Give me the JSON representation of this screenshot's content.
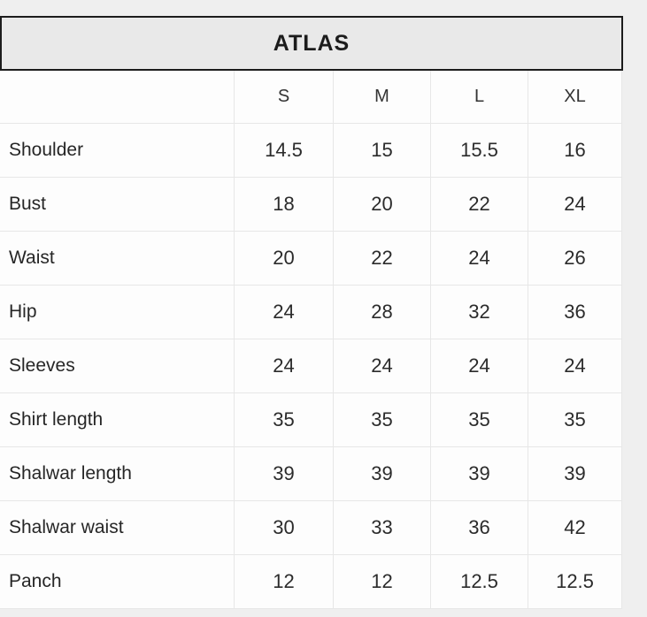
{
  "page": {
    "title": "ATLAS"
  },
  "chart_data": {
    "type": "table",
    "title": "ATLAS",
    "columns": [
      "S",
      "M",
      "L",
      "XL"
    ],
    "rows": [
      {
        "label": "Shoulder",
        "values": [
          "14.5",
          "15",
          "15.5",
          "16"
        ]
      },
      {
        "label": "Bust",
        "values": [
          "18",
          "20",
          "22",
          "24"
        ]
      },
      {
        "label": "Waist",
        "values": [
          "20",
          "22",
          "24",
          "26"
        ]
      },
      {
        "label": "Hip",
        "values": [
          "24",
          "28",
          "32",
          "36"
        ]
      },
      {
        "label": "Sleeves",
        "values": [
          "24",
          "24",
          "24",
          "24"
        ]
      },
      {
        "label": "Shirt length",
        "values": [
          "35",
          "35",
          "35",
          "35"
        ]
      },
      {
        "label": "Shalwar length",
        "values": [
          "39",
          "39",
          "39",
          "39"
        ]
      },
      {
        "label": "Shalwar waist",
        "values": [
          "30",
          "33",
          "36",
          "42"
        ]
      },
      {
        "label": "Panch",
        "values": [
          "12",
          "12",
          "12.5",
          "12.5"
        ]
      }
    ]
  },
  "colors": {
    "page_background": "#efefef",
    "cell_background": "#fdfdfd",
    "gridline": "#e7e7e7",
    "title_bar_fill": "#e9e9e9",
    "title_bar_border": "#1c1c1c",
    "text": "#2b2b2b"
  }
}
